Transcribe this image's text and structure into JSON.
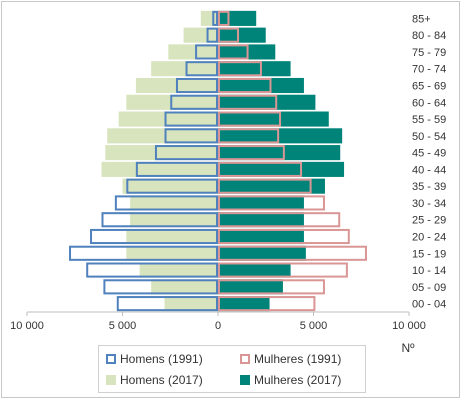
{
  "chart_data": {
    "type": "bar",
    "orientation": "horizontal",
    "layout": "population-pyramid",
    "categories": [
      "00 - 04",
      "05 - 09",
      "10 - 14",
      "15 - 19",
      "20 - 24",
      "25 - 29",
      "30 - 34",
      "35 - 39",
      "40 - 44",
      "45 - 49",
      "50 - 54",
      "55 - 59",
      "60 - 64",
      "65 - 69",
      "70 - 74",
      "75 - 79",
      "80 - 84",
      "85+"
    ],
    "series": [
      {
        "name": "Homens (1991)",
        "side": "left",
        "style": "outline",
        "color": "#4f81bd",
        "values": [
          5300,
          6000,
          6900,
          7800,
          6700,
          6100,
          5400,
          4800,
          4300,
          3300,
          2800,
          2800,
          2500,
          2200,
          1700,
          1200,
          600,
          300
        ]
      },
      {
        "name": "Mulheres (1991)",
        "side": "right",
        "style": "outline",
        "color": "#d99694",
        "values": [
          5100,
          5600,
          6800,
          7800,
          6900,
          6400,
          5600,
          4900,
          4400,
          3500,
          3200,
          3300,
          3100,
          2800,
          2300,
          1600,
          1100,
          600
        ]
      },
      {
        "name": "Homens (2017)",
        "side": "left",
        "style": "filled",
        "color": "#d7e4bd",
        "values": [
          2800,
          3500,
          4100,
          4800,
          4800,
          4600,
          4600,
          5000,
          6100,
          5900,
          5800,
          5200,
          4800,
          4300,
          3500,
          2600,
          1800,
          900
        ]
      },
      {
        "name": "Mulheres (2017)",
        "side": "right",
        "style": "filled",
        "color": "#00847a",
        "values": [
          2700,
          3400,
          3800,
          4600,
          4500,
          4500,
          4500,
          5600,
          6600,
          6400,
          6500,
          5800,
          5100,
          4500,
          3800,
          3000,
          2500,
          2000
        ]
      }
    ],
    "x_ticks": [
      "10 000",
      "5 000",
      "0",
      "5 000",
      "10 000"
    ],
    "x_tick_values": [
      -10000,
      -5000,
      0,
      5000,
      10000
    ],
    "xlim": [
      -10000,
      10000
    ],
    "xlabel": "Nº",
    "ylabel": "",
    "title": "",
    "grid": false,
    "legend_position": "bottom"
  }
}
